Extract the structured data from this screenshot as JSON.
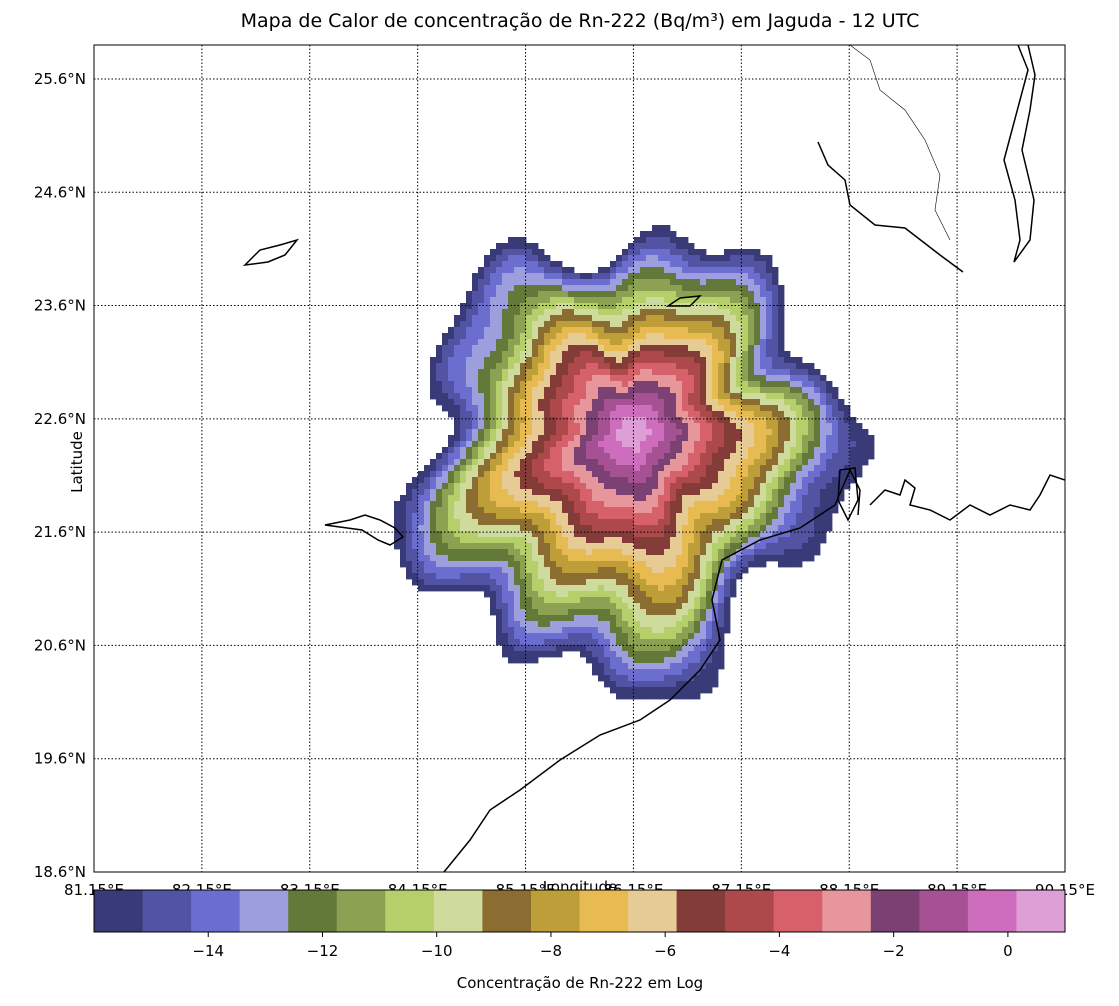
{
  "title": "Mapa de Calor de concentração de Rn-222 (Bq/m³) em Jaguda - 12 UTC",
  "map": {
    "ylabel": "Latitude",
    "xlabel": "Longitude",
    "lat_ticks": [
      "25.6°N",
      "24.6°N",
      "23.6°N",
      "22.6°N",
      "21.6°N",
      "20.6°N",
      "19.6°N",
      "18.6°N"
    ],
    "lon_ticks": [
      "81.15°E",
      "82.15°E",
      "83.15°E",
      "84.15°E",
      "85.15°E",
      "86.15°E",
      "87.15°E",
      "88.15°E",
      "89.15°E",
      "90.15°E"
    ],
    "lat_range": [
      18.6,
      25.9
    ],
    "lon_range": [
      81.15,
      90.15
    ],
    "gridlines": true,
    "source_lon": 86.15,
    "source_lat": 22.5
  },
  "colorbar": {
    "label": "Concentração de Rn-222 em Log",
    "range": [
      -16.0,
      1.0
    ],
    "ticks": [
      -14,
      -12,
      -10,
      -8,
      -6,
      -4,
      -2,
      0
    ],
    "tick_labels": [
      "−14",
      "−12",
      "−10",
      "−8",
      "−6",
      "−4",
      "−2",
      "0"
    ],
    "colors": [
      "#393b79",
      "#5254a3",
      "#6b6ecf",
      "#9c9ede",
      "#637939",
      "#8ca252",
      "#b5cf6b",
      "#cedb9c",
      "#8c6d31",
      "#bd9e39",
      "#e7ba52",
      "#e7cb94",
      "#843c39",
      "#ad494a",
      "#d6616b",
      "#e7969c",
      "#7b4173",
      "#a55194",
      "#ce6dbd",
      "#de9ed6"
    ]
  },
  "chart_data": {
    "type": "heatmap",
    "title": "Mapa de Calor de concentração de Rn-222 (Bq/m³) em Jaguda - 12 UTC",
    "xlabel": "Longitude",
    "ylabel": "Latitude",
    "xlim": [
      81.15,
      90.15
    ],
    "ylim": [
      18.6,
      25.9
    ],
    "colorbar_label": "Concentração de Rn-222 em Log",
    "colorbar_range": [
      -16.0,
      1.0
    ],
    "concentric_levels_log": [
      1.0,
      0.0,
      -1.0,
      -2.0,
      -3.0,
      -4.0,
      -5.0,
      -6.0,
      -7.0,
      -8.0,
      -9.0,
      -10.0,
      -11.0,
      -12.0,
      -13.0,
      -14.0,
      -15.0
    ],
    "plume_peak_location": {
      "lon": 86.15,
      "lat": 22.5
    }
  }
}
